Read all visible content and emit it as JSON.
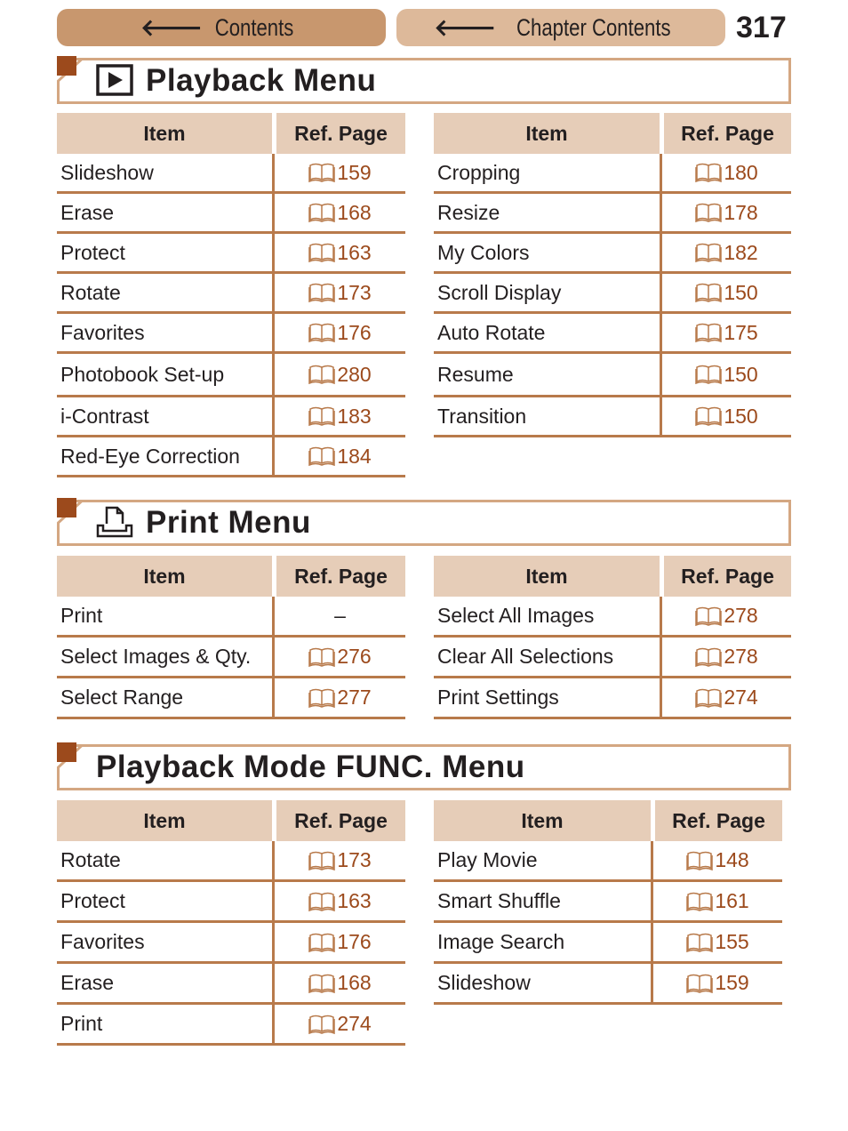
{
  "nav": {
    "contents": "Contents",
    "chapter_contents": "Chapter Contents",
    "page_number": "317"
  },
  "headers": {
    "item": "Item",
    "ref": "Ref. Page"
  },
  "colors": {
    "nav_contents": "#c8976e",
    "nav_chapter": "#ddb99a",
    "header_fill": "#e6cdb8",
    "rule": "#b87a4b",
    "accent": "#9c4a1c"
  },
  "sections": [
    {
      "title": "Playback Menu",
      "icon": "playback-icon",
      "left": [
        [
          "Slideshow",
          "159"
        ],
        [
          "Erase",
          "168"
        ],
        [
          "Protect",
          "163"
        ],
        [
          "Rotate",
          "173"
        ],
        [
          "Favorites",
          "176"
        ],
        [
          "Photobook Set-up",
          "280"
        ],
        [
          "i-Contrast",
          "183"
        ],
        [
          "Red-Eye Correction",
          "184"
        ]
      ],
      "right": [
        [
          "Cropping",
          "180"
        ],
        [
          "Resize",
          "178"
        ],
        [
          "My Colors",
          "182"
        ],
        [
          "Scroll Display",
          "150"
        ],
        [
          "Auto Rotate",
          "175"
        ],
        [
          "Resume",
          "150"
        ],
        [
          "Transition",
          "150"
        ]
      ]
    },
    {
      "title": "Print Menu",
      "icon": "print-icon",
      "left": [
        [
          "Print",
          "–"
        ],
        [
          "Select Images & Qty.",
          "276"
        ],
        [
          "Select Range",
          "277"
        ]
      ],
      "right": [
        [
          "Select All Images",
          "278"
        ],
        [
          "Clear All Selections",
          "278"
        ],
        [
          "Print Settings",
          "274"
        ]
      ]
    },
    {
      "title": "Playback Mode FUNC. Menu",
      "icon": "",
      "left": [
        [
          "Rotate",
          "173"
        ],
        [
          "Protect",
          "163"
        ],
        [
          "Favorites",
          "176"
        ],
        [
          "Erase",
          "168"
        ],
        [
          "Print",
          "274"
        ]
      ],
      "right": [
        [
          "Play Movie",
          "148"
        ],
        [
          "Smart Shuffle",
          "161"
        ],
        [
          "Image Search",
          "155"
        ],
        [
          "Slideshow",
          "159"
        ]
      ]
    }
  ]
}
